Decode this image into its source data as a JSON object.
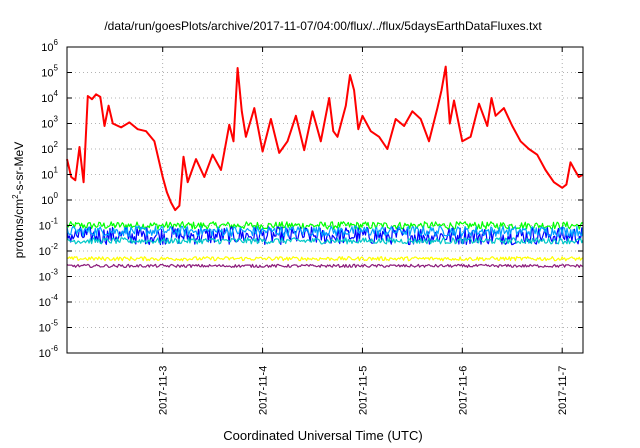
{
  "chart_data": {
    "type": "line",
    "title": "/data/run/goesPlots/archive/2017-11-07/04:00/flux/../flux/5daysEarthDataFluxes.txt",
    "xlabel": "Coordinated Universal Time (UTC)",
    "ylabel": "protons/cm2-s-sr-MeV",
    "ylabel_parts": {
      "pre": "protons/cm",
      "sup": "2",
      "post": "-s-sr-MeV"
    },
    "y_scale": "log",
    "ylim": [
      1e-06,
      1000000.0
    ],
    "xlim": [
      "2017-11-02T01:00",
      "2017-11-07T05:00"
    ],
    "grid": true,
    "y_ticks": [
      {
        "base": "10",
        "exp": "-6"
      },
      {
        "base": "10",
        "exp": "-5"
      },
      {
        "base": "10",
        "exp": "-4"
      },
      {
        "base": "10",
        "exp": "-3"
      },
      {
        "base": "10",
        "exp": "-2"
      },
      {
        "base": "10",
        "exp": "-1"
      },
      {
        "base": "10",
        "exp": "0"
      },
      {
        "base": "10",
        "exp": "1"
      },
      {
        "base": "10",
        "exp": "2"
      },
      {
        "base": "10",
        "exp": "3"
      },
      {
        "base": "10",
        "exp": "4"
      },
      {
        "base": "10",
        "exp": "5"
      },
      {
        "base": "10",
        "exp": "6"
      }
    ],
    "x_ticks": [
      "2017-11-3",
      "2017-11-4",
      "2017-11-5",
      "2017-11-6",
      "2017-11-7"
    ],
    "x_tick_dates": [
      "2017-11-03T00:00",
      "2017-11-04T00:00",
      "2017-11-05T00:00",
      "2017-11-06T00:00",
      "2017-11-07T00:00"
    ],
    "series": [
      {
        "color": "#ff0000",
        "noisy": false,
        "points": [
          [
            "2017-11-02T01:00",
            40
          ],
          [
            "2017-11-02T02:00",
            8
          ],
          [
            "2017-11-02T03:00",
            6
          ],
          [
            "2017-11-02T04:00",
            120
          ],
          [
            "2017-11-02T05:00",
            5
          ],
          [
            "2017-11-02T06:00",
            12000
          ],
          [
            "2017-11-02T07:00",
            9000
          ],
          [
            "2017-11-02T08:00",
            14000
          ],
          [
            "2017-11-02T09:00",
            11000
          ],
          [
            "2017-11-02T10:00",
            800
          ],
          [
            "2017-11-02T11:00",
            5000
          ],
          [
            "2017-11-02T12:00",
            1000
          ],
          [
            "2017-11-02T14:00",
            700
          ],
          [
            "2017-11-02T16:00",
            1100
          ],
          [
            "2017-11-02T18:00",
            600
          ],
          [
            "2017-11-02T20:00",
            500
          ],
          [
            "2017-11-02T22:00",
            200
          ],
          [
            "2017-11-03T00:00",
            8
          ],
          [
            "2017-11-03T01:00",
            2
          ],
          [
            "2017-11-03T02:00",
            0.8
          ],
          [
            "2017-11-03T03:00",
            0.4
          ],
          [
            "2017-11-03T04:00",
            0.6
          ],
          [
            "2017-11-03T05:00",
            50
          ],
          [
            "2017-11-03T06:00",
            5
          ],
          [
            "2017-11-03T08:00",
            40
          ],
          [
            "2017-11-03T10:00",
            8
          ],
          [
            "2017-11-03T12:00",
            60
          ],
          [
            "2017-11-03T14:00",
            15
          ],
          [
            "2017-11-03T16:00",
            900
          ],
          [
            "2017-11-03T17:00",
            200
          ],
          [
            "2017-11-03T18:00",
            150000
          ],
          [
            "2017-11-03T19:00",
            3000
          ],
          [
            "2017-11-03T20:00",
            300
          ],
          [
            "2017-11-03T22:00",
            4000
          ],
          [
            "2017-11-04T00:00",
            80
          ],
          [
            "2017-11-04T02:00",
            1500
          ],
          [
            "2017-11-04T04:00",
            70
          ],
          [
            "2017-11-04T06:00",
            200
          ],
          [
            "2017-11-04T08:00",
            2000
          ],
          [
            "2017-11-04T10:00",
            90
          ],
          [
            "2017-11-04T12:00",
            3000
          ],
          [
            "2017-11-04T14:00",
            200
          ],
          [
            "2017-11-04T16:00",
            10000
          ],
          [
            "2017-11-04T17:00",
            500
          ],
          [
            "2017-11-04T18:00",
            300
          ],
          [
            "2017-11-04T20:00",
            5000
          ],
          [
            "2017-11-04T21:00",
            80000
          ],
          [
            "2017-11-04T22:00",
            20000
          ],
          [
            "2017-11-04T23:00",
            600
          ],
          [
            "2017-11-05T00:00",
            2000
          ],
          [
            "2017-11-05T02:00",
            500
          ],
          [
            "2017-11-05T04:00",
            300
          ],
          [
            "2017-11-05T06:00",
            100
          ],
          [
            "2017-11-05T08:00",
            1500
          ],
          [
            "2017-11-05T10:00",
            800
          ],
          [
            "2017-11-05T12:00",
            3000
          ],
          [
            "2017-11-05T14:00",
            1500
          ],
          [
            "2017-11-05T16:00",
            200
          ],
          [
            "2017-11-05T18:00",
            4000
          ],
          [
            "2017-11-05T19:00",
            20000
          ],
          [
            "2017-11-05T20:00",
            170000
          ],
          [
            "2017-11-05T21:00",
            1000
          ],
          [
            "2017-11-05T22:00",
            8000
          ],
          [
            "2017-11-06T00:00",
            200
          ],
          [
            "2017-11-06T02:00",
            300
          ],
          [
            "2017-11-06T04:00",
            6000
          ],
          [
            "2017-11-06T06:00",
            800
          ],
          [
            "2017-11-06T07:00",
            10000
          ],
          [
            "2017-11-06T08:00",
            2000
          ],
          [
            "2017-11-06T10:00",
            4000
          ],
          [
            "2017-11-06T12:00",
            800
          ],
          [
            "2017-11-06T14:00",
            200
          ],
          [
            "2017-11-06T16:00",
            100
          ],
          [
            "2017-11-06T18:00",
            60
          ],
          [
            "2017-11-06T20:00",
            15
          ],
          [
            "2017-11-06T22:00",
            5
          ],
          [
            "2017-11-07T00:00",
            3
          ],
          [
            "2017-11-07T01:00",
            4
          ],
          [
            "2017-11-07T02:00",
            30
          ],
          [
            "2017-11-07T03:00",
            15
          ],
          [
            "2017-11-07T04:00",
            8
          ],
          [
            "2017-11-07T05:00",
            10
          ]
        ]
      },
      {
        "color": "#00ff00",
        "noisy": true,
        "base": 0.1,
        "amp": 0.15
      },
      {
        "color": "#00c8c8",
        "noisy": true,
        "base": 0.025,
        "amp": 0.12
      },
      {
        "color": "#0000ff",
        "noisy": true,
        "base": 0.04,
        "amp": 0.35
      },
      {
        "color": "#00a0ff",
        "noisy": true,
        "base": 0.06,
        "amp": 0.2
      },
      {
        "color": "#ffff00",
        "noisy": true,
        "base": 0.005,
        "amp": 0.08
      },
      {
        "color": "#8b1a7a",
        "noisy": true,
        "base": 0.0026,
        "amp": 0.06
      }
    ]
  }
}
